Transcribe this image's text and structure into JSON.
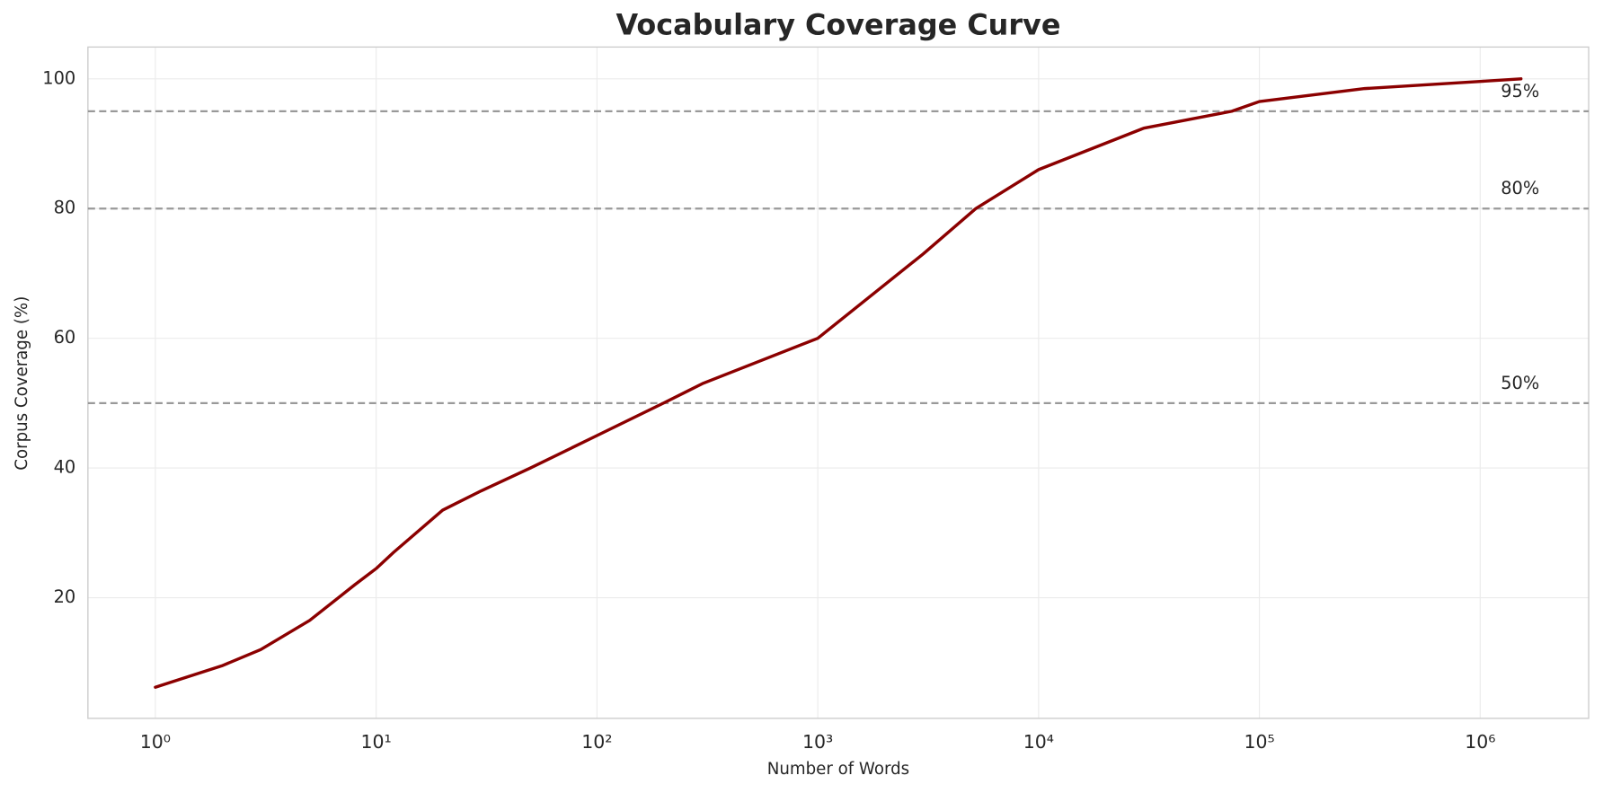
{
  "chart_data": {
    "type": "line",
    "title": "Vocabulary Coverage Curve",
    "x_label": "Number of Words",
    "y_label": "Corpus Coverage (%)",
    "x": [
      1,
      2,
      3,
      5,
      8,
      10,
      12,
      20,
      30,
      50,
      100,
      200,
      300,
      1000,
      3000,
      5200,
      10000,
      30000,
      75000,
      100000,
      300000,
      1000000,
      1530000
    ],
    "series": [
      {
        "name": "Coverage",
        "color": "#8b0000",
        "values": [
          6.2,
          9.5,
          12,
          16.5,
          22,
          24.5,
          27,
          33.5,
          36.5,
          40,
          45,
          50,
          53,
          60,
          73,
          80,
          86,
          92.4,
          95,
          96.5,
          98.5,
          99.6,
          100
        ]
      }
    ],
    "x_log": true,
    "xlim": [
      0.495,
      3100000
    ],
    "ylim": [
      1.4,
      104.9
    ],
    "xticks": [
      {
        "value": 1,
        "label": "10⁰"
      },
      {
        "value": 10,
        "label": "10¹"
      },
      {
        "value": 100,
        "label": "10²"
      },
      {
        "value": 1000,
        "label": "10³"
      },
      {
        "value": 10000,
        "label": "10⁴"
      },
      {
        "value": 100000,
        "label": "10⁵"
      },
      {
        "value": 1000000,
        "label": "10⁶"
      }
    ],
    "yticks": [
      20,
      40,
      60,
      80,
      100
    ],
    "grid": true,
    "reference_lines": [
      {
        "value": 50,
        "label": "50%"
      },
      {
        "value": 80,
        "label": "80%"
      },
      {
        "value": 95,
        "label": "95%"
      }
    ],
    "reference_color": "#999999"
  }
}
